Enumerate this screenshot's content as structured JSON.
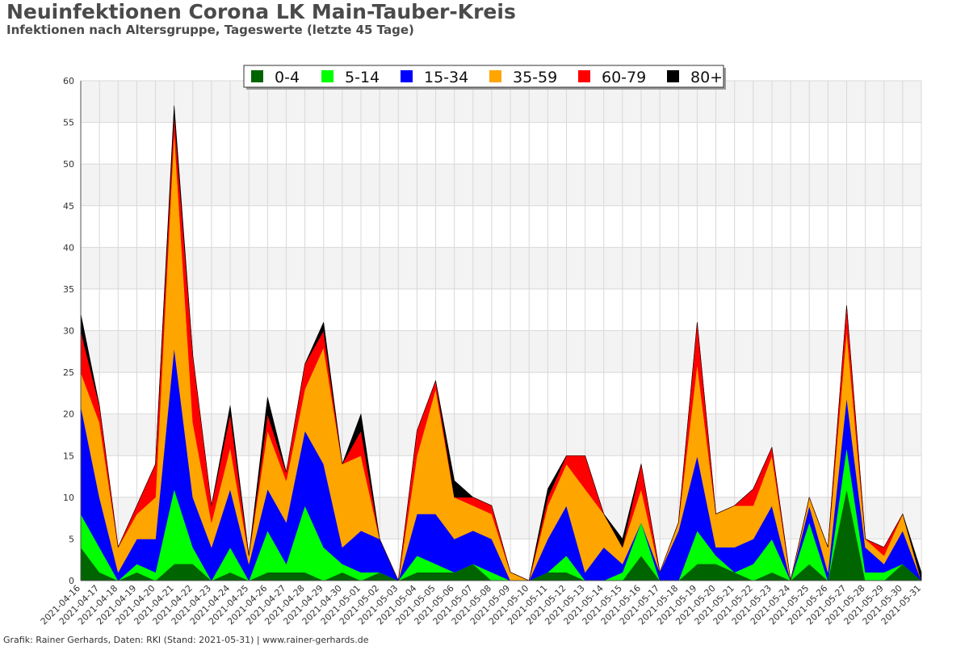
{
  "title": "Neuinfektionen Corona LK Main-Tauber-Kreis",
  "subtitle": "Infektionen nach Altersgruppe, Tageswerte (letzte 45 Tage)",
  "credit": "Grafik: Rainer Gerhards, Daten: RKI (Stand: 2021-05-31) | www.rainer-gerhards.de",
  "chart_data": {
    "type": "area",
    "stacked": true,
    "title": "Neuinfektionen Corona LK Main-Tauber-Kreis",
    "subtitle": "Infektionen nach Altersgruppe, Tageswerte (letzte 45 Tage)",
    "xlabel": "",
    "ylabel": "",
    "ylim": [
      0,
      60
    ],
    "yticks": [
      0,
      5,
      10,
      15,
      20,
      25,
      30,
      35,
      40,
      45,
      50,
      55,
      60
    ],
    "grid": true,
    "legend_position": "top-center",
    "x": [
      "2021-04-16",
      "2021-04-17",
      "2021-04-18",
      "2021-04-19",
      "2021-04-20",
      "2021-04-21",
      "2021-04-22",
      "2021-04-23",
      "2021-04-24",
      "2021-04-25",
      "2021-04-26",
      "2021-04-27",
      "2021-04-28",
      "2021-04-29",
      "2021-04-30",
      "2021-05-01",
      "2021-05-02",
      "2021-05-03",
      "2021-05-04",
      "2021-05-05",
      "2021-05-06",
      "2021-05-07",
      "2021-05-08",
      "2021-05-09",
      "2021-05-10",
      "2021-05-11",
      "2021-05-12",
      "2021-05-13",
      "2021-05-14",
      "2021-05-15",
      "2021-05-16",
      "2021-05-17",
      "2021-05-18",
      "2021-05-19",
      "2021-05-20",
      "2021-05-21",
      "2021-05-22",
      "2021-05-23",
      "2021-05-24",
      "2021-05-25",
      "2021-05-26",
      "2021-05-27",
      "2021-05-28",
      "2021-05-29",
      "2021-05-30",
      "2021-05-31"
    ],
    "series": [
      {
        "name": "0-4",
        "color": "#006400",
        "values": [
          4,
          1,
          0,
          1,
          0,
          2,
          2,
          0,
          1,
          0,
          1,
          1,
          1,
          0,
          1,
          0,
          1,
          0,
          1,
          1,
          1,
          2,
          0,
          0,
          0,
          1,
          1,
          0,
          0,
          0,
          3,
          0,
          0,
          2,
          2,
          1,
          0,
          1,
          0,
          2,
          0,
          11,
          0,
          0,
          2,
          0
        ]
      },
      {
        "name": "5-14",
        "color": "#00ff00",
        "values": [
          4,
          3,
          0,
          1,
          1,
          9,
          2,
          0,
          3,
          0,
          5,
          1,
          8,
          4,
          1,
          1,
          0,
          0,
          2,
          1,
          0,
          0,
          1,
          0,
          0,
          0,
          2,
          0,
          0,
          1,
          4,
          0,
          0,
          4,
          1,
          0,
          2,
          4,
          0,
          5,
          0,
          5,
          1,
          1,
          0,
          0
        ]
      },
      {
        "name": "15-34",
        "color": "#0000ff",
        "values": [
          13,
          6,
          1,
          3,
          4,
          17,
          6,
          4,
          7,
          2,
          5,
          5,
          9,
          10,
          2,
          5,
          4,
          0,
          5,
          6,
          4,
          4,
          4,
          0,
          0,
          4,
          6,
          1,
          4,
          1,
          0,
          1,
          6,
          9,
          1,
          3,
          3,
          4,
          0,
          2,
          1,
          6,
          3,
          1,
          4,
          0
        ]
      },
      {
        "name": "35-59",
        "color": "#ffa500",
        "values": [
          4,
          9,
          3,
          3,
          5,
          26,
          9,
          3,
          5,
          1,
          7,
          5,
          5,
          14,
          10,
          9,
          0,
          0,
          7,
          15,
          5,
          3,
          3,
          1,
          0,
          4,
          5,
          10,
          4,
          2,
          4,
          0,
          1,
          11,
          4,
          5,
          4,
          6,
          0,
          1,
          3,
          8,
          1,
          1,
          2,
          0
        ]
      },
      {
        "name": "60-79",
        "color": "#ff0000",
        "values": [
          5,
          2,
          0,
          1,
          4,
          2,
          8,
          2,
          4,
          0,
          2,
          1,
          3,
          2,
          0,
          3,
          0,
          0,
          3,
          1,
          0,
          1,
          1,
          0,
          0,
          1,
          1,
          4,
          0,
          0,
          3,
          0,
          0,
          5,
          0,
          0,
          2,
          1,
          0,
          0,
          0,
          3,
          0,
          1,
          0,
          0
        ]
      },
      {
        "name": "80+",
        "color": "#000000",
        "values": [
          2,
          0,
          0,
          0,
          0,
          1,
          0,
          0,
          1,
          0,
          2,
          0,
          0,
          1,
          0,
          2,
          0,
          0,
          0,
          0,
          2,
          0,
          0,
          0,
          0,
          1,
          0,
          0,
          0,
          1,
          0,
          0,
          0,
          0,
          0,
          0,
          0,
          0,
          0,
          0,
          0,
          0,
          0,
          0,
          0,
          1
        ]
      }
    ]
  }
}
